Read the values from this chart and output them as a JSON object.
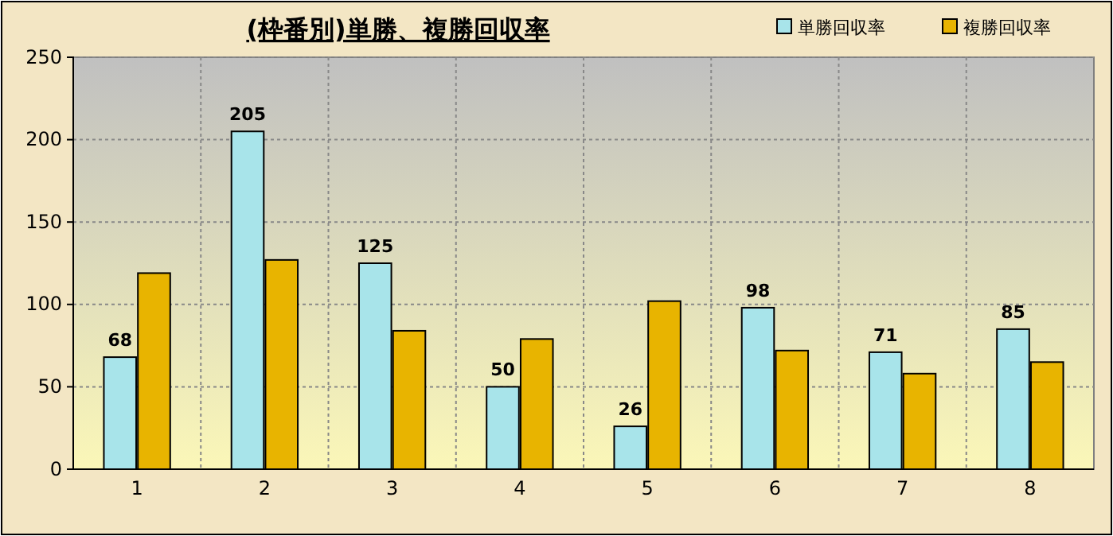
{
  "chart_data": {
    "type": "bar",
    "title": "(枠番別)単勝、複勝回収率",
    "categories": [
      "1",
      "2",
      "3",
      "4",
      "5",
      "6",
      "7",
      "8"
    ],
    "series": [
      {
        "name": "単勝回収率",
        "color": "#a8e4ea",
        "values": [
          68,
          205,
          125,
          50,
          26,
          98,
          71,
          85
        ],
        "value_labels": [
          "68",
          "205",
          "125",
          "50",
          "26",
          "98",
          "71",
          "85"
        ]
      },
      {
        "name": "複勝回収率",
        "color": "#e8b400",
        "values": [
          119,
          127,
          84,
          79,
          102,
          72,
          58,
          65
        ]
      }
    ],
    "ylim": [
      0,
      250
    ],
    "yticks": [
      0,
      50,
      100,
      150,
      200,
      250
    ],
    "grid": true,
    "legend": "top right"
  }
}
